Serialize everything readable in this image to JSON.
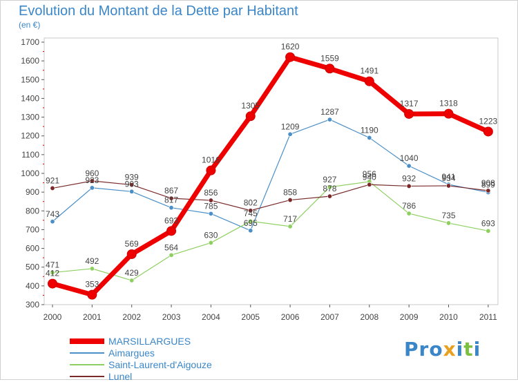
{
  "title": "Evolution du Montant de la Dette par Habitant",
  "unit": "(en €)",
  "logo": {
    "letters": [
      "P",
      "r",
      "o",
      "x",
      "i",
      "t",
      "i"
    ],
    "colors": [
      "#3a86c8",
      "#3a86c8",
      "#3a86c8",
      "#e8a020",
      "#3a86c8",
      "#7cc040",
      "#3a86c8"
    ]
  },
  "chart_data": {
    "type": "line",
    "x": [
      "2000",
      "2001",
      "2002",
      "2003",
      "2004",
      "2005",
      "2006",
      "2007",
      "2008",
      "2009",
      "2010",
      "2011"
    ],
    "ylim": [
      300,
      1700
    ],
    "yticks": [
      300,
      400,
      500,
      600,
      700,
      800,
      900,
      1000,
      1100,
      1200,
      1300,
      1400,
      1500,
      1600,
      1700
    ],
    "grid": false,
    "legend_position": "bottom-left",
    "series": [
      {
        "name": "MARSILLARGUES",
        "color": "#ee0000",
        "width": 7,
        "values": [
          412,
          353,
          569,
          693,
          1016,
          1305,
          1620,
          1559,
          1491,
          1317,
          1318,
          1223
        ]
      },
      {
        "name": "Aimargues",
        "color": "#4a8fc8",
        "width": 1.2,
        "values": [
          743,
          923,
          903,
          817,
          785,
          695,
          1209,
          1287,
          1190,
          1040,
          941,
          899
        ]
      },
      {
        "name": "Saint-Laurent-d'Aigouze",
        "color": "#8ed060",
        "width": 1.2,
        "values": [
          471,
          492,
          429,
          564,
          630,
          745,
          717,
          927,
          956,
          786,
          735,
          693
        ]
      },
      {
        "name": "Lunel",
        "color": "#7a2a2a",
        "width": 1.2,
        "values": [
          921,
          960,
          939,
          867,
          856,
          802,
          858,
          878,
          940,
          932,
          934,
          908
        ]
      }
    ],
    "data_labels": [
      [
        "412",
        "353",
        "569",
        "693",
        "1016",
        "1305",
        "1620",
        "1559",
        "1491",
        "1317",
        "1318",
        "1223"
      ],
      [
        "743",
        "923",
        "903",
        "817",
        "785",
        "695",
        "1209",
        "1287",
        "1190",
        "1040",
        "941",
        "899"
      ],
      [
        "471",
        "492",
        "429",
        "564",
        "630",
        "745",
        "717",
        "927",
        "956",
        "786",
        "735",
        "693"
      ],
      [
        "921",
        "960",
        "939",
        "867",
        "856",
        "802",
        "858",
        "878",
        "940",
        "932",
        "934",
        "908"
      ]
    ]
  }
}
